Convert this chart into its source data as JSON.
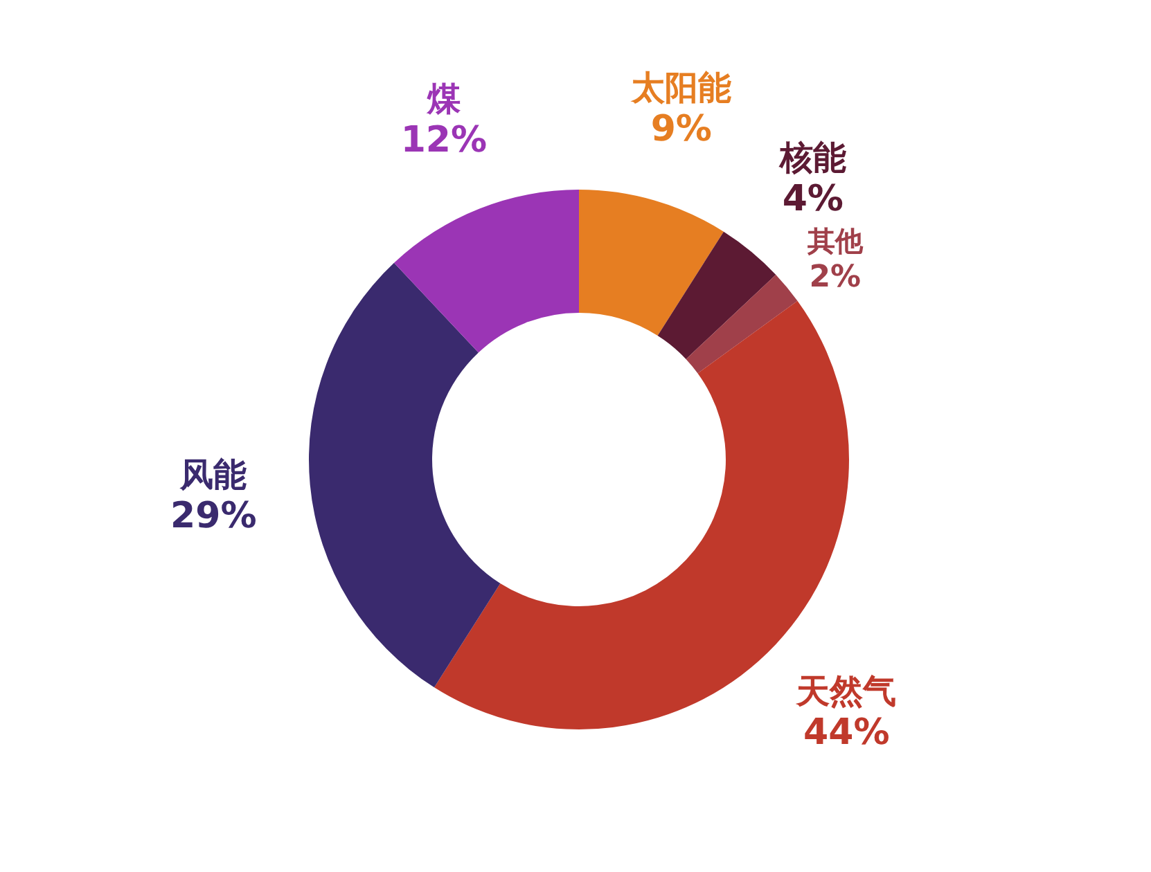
{
  "chart_data": {
    "type": "donut",
    "categories": [
      "太阳能",
      "核能",
      "其他",
      "天然气",
      "风能",
      "煤"
    ],
    "values": [
      9,
      4,
      2,
      44,
      29,
      12
    ],
    "value_labels": [
      "9%",
      "4%",
      "2%",
      "44%",
      "29%",
      "12%"
    ],
    "colors": [
      "#e67e22",
      "#5c1a33",
      "#a0404a",
      "#c0392b",
      "#3a2a6e",
      "#9b35b5"
    ]
  }
}
